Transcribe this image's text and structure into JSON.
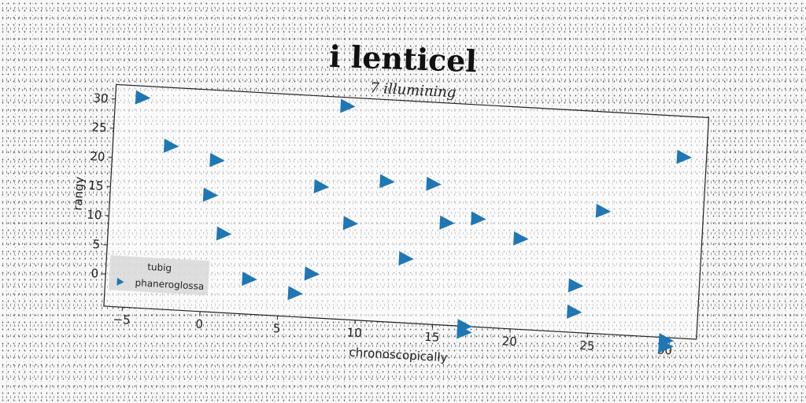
{
  "figure": {
    "suptitle": "i lenticel"
  },
  "chart_data": {
    "type": "scatter",
    "title": "7 illumining",
    "xlabel": "chronoscopically",
    "ylabel": "rangy",
    "xlim": [
      -6.2,
      32
    ],
    "ylim": [
      -5.5,
      32.5
    ],
    "xticks": [
      -5,
      0,
      5,
      10,
      15,
      20,
      25,
      30
    ],
    "yticks": [
      0,
      5,
      10,
      15,
      20,
      25,
      30
    ],
    "xtick_labels": [
      "−5",
      "0",
      "5",
      "10",
      "15",
      "20",
      "25",
      "30"
    ],
    "ytick_labels": [
      "0",
      "5",
      "10",
      "15",
      "20",
      "25",
      "30"
    ],
    "grid": false,
    "legend": {
      "title": "tubig",
      "position": "lower-left",
      "entries": [
        "phaneroglossa"
      ]
    },
    "series": [
      {
        "name": "phaneroglossa",
        "marker": "triangle-right",
        "color": "#1f77b4",
        "points": [
          {
            "x": -4.5,
            "y": 30.5
          },
          {
            "x": 8.7,
            "y": 31.0
          },
          {
            "x": -2.5,
            "y": 22.5
          },
          {
            "x": 0.5,
            "y": 20.5
          },
          {
            "x": 0.2,
            "y": 14.5
          },
          {
            "x": 7.3,
            "y": 17.0
          },
          {
            "x": 11.5,
            "y": 18.5
          },
          {
            "x": 14.5,
            "y": 18.5
          },
          {
            "x": 30.5,
            "y": 25.5
          },
          {
            "x": 1.2,
            "y": 8.0
          },
          {
            "x": 9.3,
            "y": 11.0
          },
          {
            "x": 15.5,
            "y": 12.0
          },
          {
            "x": 17.5,
            "y": 13.0
          },
          {
            "x": 20.3,
            "y": 10.0
          },
          {
            "x": 25.5,
            "y": 15.5
          },
          {
            "x": 13.0,
            "y": 5.5
          },
          {
            "x": 3.0,
            "y": 0.5
          },
          {
            "x": 7.0,
            "y": 2.0
          },
          {
            "x": 6.0,
            "y": -1.5
          },
          {
            "x": 24.0,
            "y": 2.5
          },
          {
            "x": 24.0,
            "y": -2.0
          },
          {
            "x": 17.0,
            "y": -5.5
          },
          {
            "x": 17.0,
            "y": -6.5
          },
          {
            "x": 30.0,
            "y": -6.0
          },
          {
            "x": 30.0,
            "y": -7.0
          }
        ]
      }
    ]
  }
}
